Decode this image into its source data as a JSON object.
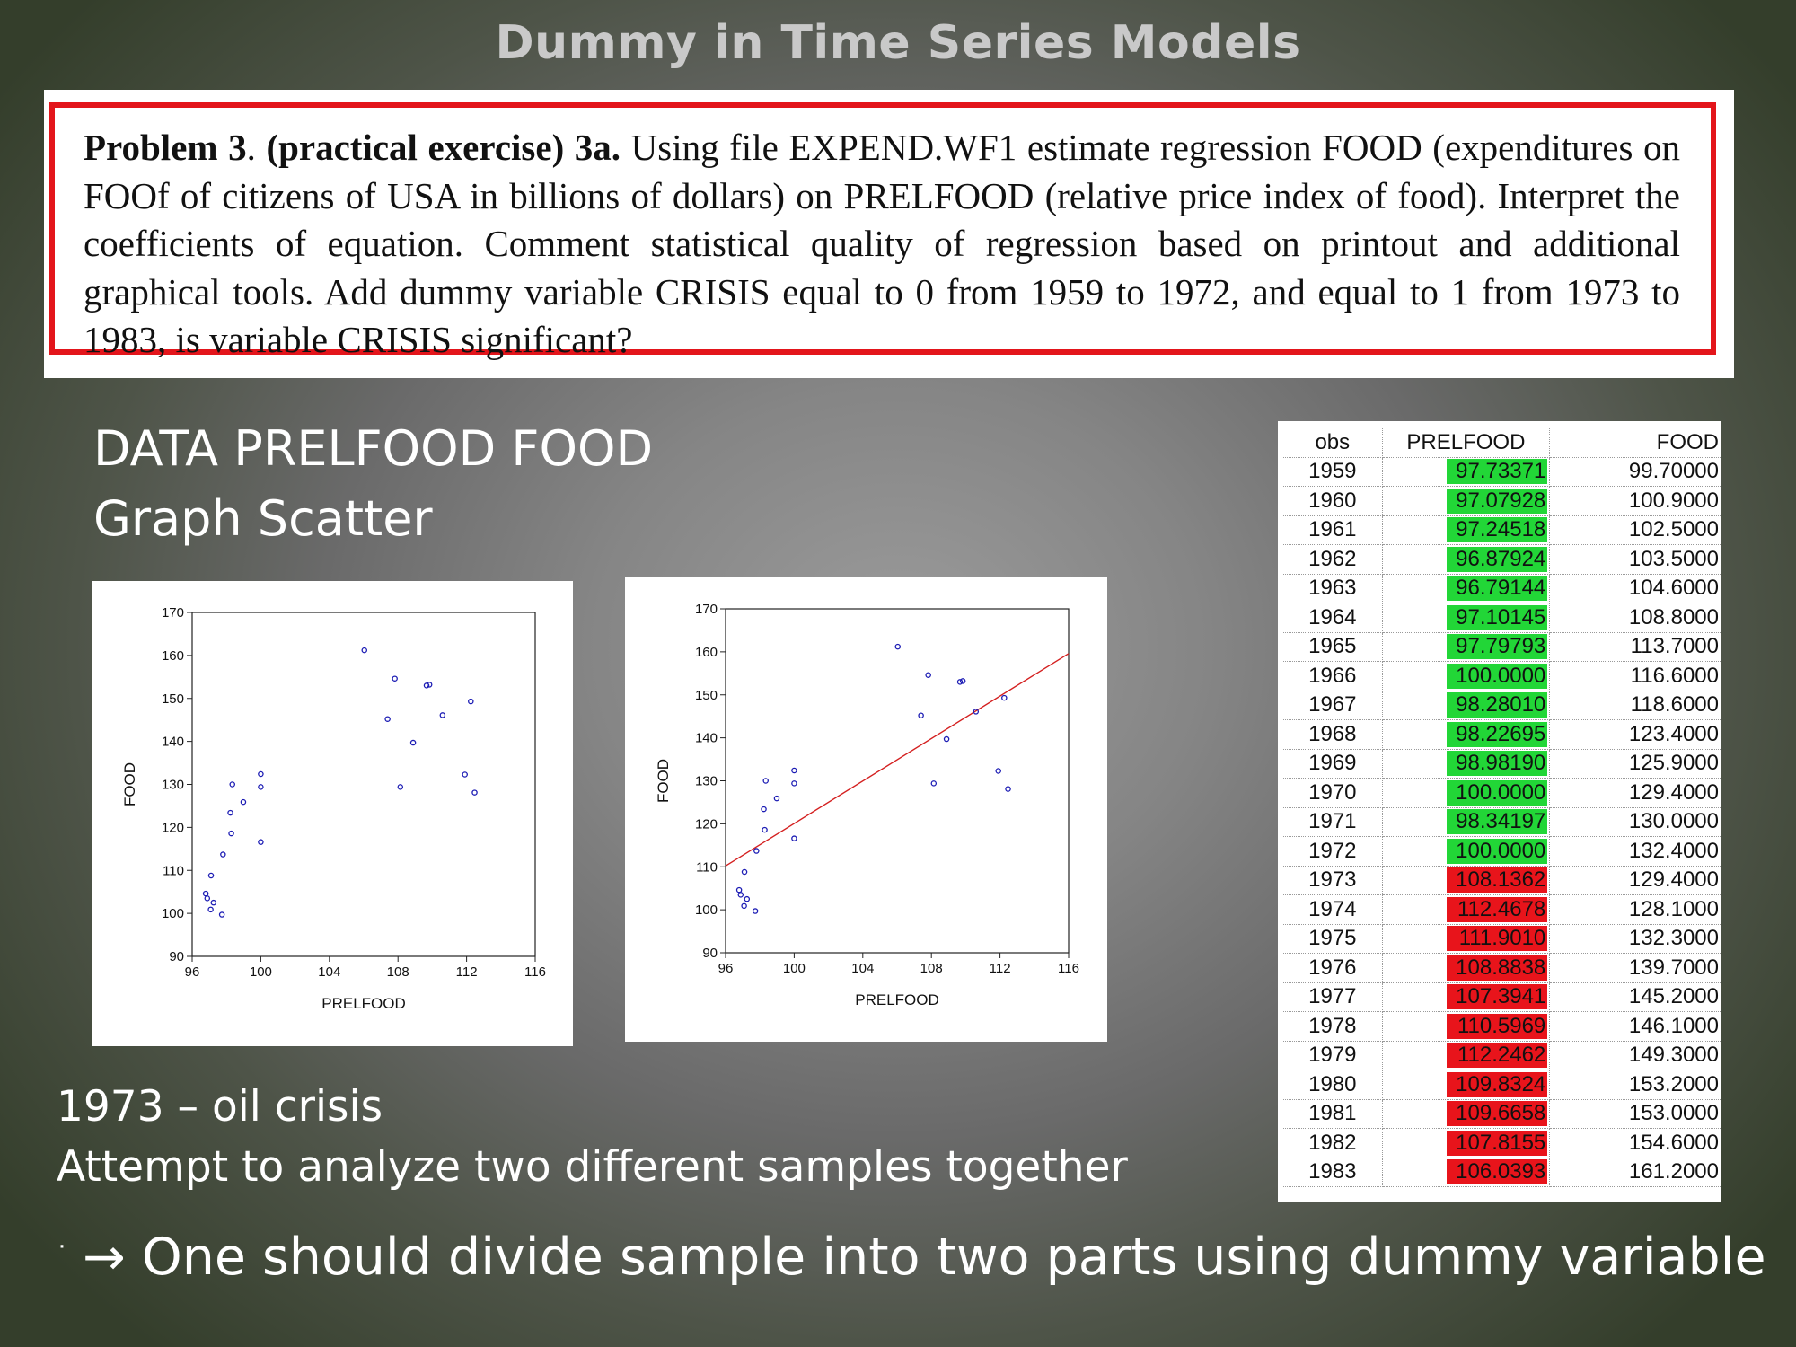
{
  "slide": {
    "title": "Dummy in Time Series Models"
  },
  "problem": {
    "bold_lead": "Problem 3",
    "dot": ".",
    "bold_mid": " (practical exercise) 3a.",
    "text": " Using file EXPEND.WF1 estimate regression FOOD (expenditures on FOOf of citizens of USA in billions of dollars) on PRELFOOD (relative price index of food). Interpret the coefficients of equation. Comment statistical quality of regression based on printout and additional graphical tools.  Add dummy variable CRISIS equal to 0 from 1959 to 1972, and equal to 1 from 1973 to 1983, is variable CRISIS significant?"
  },
  "headings": {
    "line1": "DATA PRELFOOD FOOD",
    "line2": "Graph Scatter"
  },
  "notes": {
    "line1": "1973 – oil crisis",
    "line2": "Attempt to analyze two different samples together",
    "bullet": "·",
    "conclusion": "→ One should divide sample into two parts using dummy variable"
  },
  "table": {
    "headers": [
      "obs",
      "PRELFOOD",
      "FOOD"
    ],
    "rows": [
      {
        "obs": "1959",
        "prelfood": "97.73371",
        "food": "99.70000",
        "crisis": 0
      },
      {
        "obs": "1960",
        "prelfood": "97.07928",
        "food": "100.9000",
        "crisis": 0
      },
      {
        "obs": "1961",
        "prelfood": "97.24518",
        "food": "102.5000",
        "crisis": 0
      },
      {
        "obs": "1962",
        "prelfood": "96.87924",
        "food": "103.5000",
        "crisis": 0
      },
      {
        "obs": "1963",
        "prelfood": "96.79144",
        "food": "104.6000",
        "crisis": 0
      },
      {
        "obs": "1964",
        "prelfood": "97.10145",
        "food": "108.8000",
        "crisis": 0
      },
      {
        "obs": "1965",
        "prelfood": "97.79793",
        "food": "113.7000",
        "crisis": 0
      },
      {
        "obs": "1966",
        "prelfood": "100.0000",
        "food": "116.6000",
        "crisis": 0
      },
      {
        "obs": "1967",
        "prelfood": "98.28010",
        "food": "118.6000",
        "crisis": 0
      },
      {
        "obs": "1968",
        "prelfood": "98.22695",
        "food": "123.4000",
        "crisis": 0
      },
      {
        "obs": "1969",
        "prelfood": "98.98190",
        "food": "125.9000",
        "crisis": 0
      },
      {
        "obs": "1970",
        "prelfood": "100.0000",
        "food": "129.4000",
        "crisis": 0
      },
      {
        "obs": "1971",
        "prelfood": "98.34197",
        "food": "130.0000",
        "crisis": 0
      },
      {
        "obs": "1972",
        "prelfood": "100.0000",
        "food": "132.4000",
        "crisis": 0
      },
      {
        "obs": "1973",
        "prelfood": "108.1362",
        "food": "129.4000",
        "crisis": 1
      },
      {
        "obs": "1974",
        "prelfood": "112.4678",
        "food": "128.1000",
        "crisis": 1
      },
      {
        "obs": "1975",
        "prelfood": "111.9010",
        "food": "132.3000",
        "crisis": 1
      },
      {
        "obs": "1976",
        "prelfood": "108.8838",
        "food": "139.7000",
        "crisis": 1
      },
      {
        "obs": "1977",
        "prelfood": "107.3941",
        "food": "145.2000",
        "crisis": 1
      },
      {
        "obs": "1978",
        "prelfood": "110.5969",
        "food": "146.1000",
        "crisis": 1
      },
      {
        "obs": "1979",
        "prelfood": "112.2462",
        "food": "149.3000",
        "crisis": 1
      },
      {
        "obs": "1980",
        "prelfood": "109.8324",
        "food": "153.2000",
        "crisis": 1
      },
      {
        "obs": "1981",
        "prelfood": "109.6658",
        "food": "153.0000",
        "crisis": 1
      },
      {
        "obs": "1982",
        "prelfood": "107.8155",
        "food": "154.6000",
        "crisis": 1
      },
      {
        "obs": "1983",
        "prelfood": "106.0393",
        "food": "161.2000",
        "crisis": 1
      }
    ],
    "colors": {
      "pre_crisis": "#22d637",
      "crisis": "#e8141b"
    }
  },
  "chart_data": [
    {
      "type": "scatter",
      "title": "",
      "xlabel": "PRELFOOD",
      "ylabel": "FOOD",
      "xlim": [
        96,
        116
      ],
      "ylim": [
        90,
        170
      ],
      "xticks": [
        96,
        100,
        104,
        108,
        112,
        116
      ],
      "yticks": [
        90,
        100,
        110,
        120,
        130,
        140,
        150,
        160,
        170
      ],
      "grid": false,
      "marker_color": "#1c1cb4",
      "x": [
        97.73371,
        97.07928,
        97.24518,
        96.87924,
        96.79144,
        97.10145,
        97.79793,
        100.0,
        98.2801,
        98.22695,
        98.9819,
        100.0,
        98.34197,
        100.0,
        108.1362,
        112.4678,
        111.901,
        108.8838,
        107.3941,
        110.5969,
        112.2462,
        109.8324,
        109.6658,
        107.8155,
        106.0393
      ],
      "y": [
        99.7,
        100.9,
        102.5,
        103.5,
        104.6,
        108.8,
        113.7,
        116.6,
        118.6,
        123.4,
        125.9,
        129.4,
        130.0,
        132.4,
        129.4,
        128.1,
        132.3,
        139.7,
        145.2,
        146.1,
        149.3,
        153.2,
        153.0,
        154.6,
        161.2
      ]
    },
    {
      "type": "scatter",
      "title": "",
      "xlabel": "PRELFOOD",
      "ylabel": "FOOD",
      "xlim": [
        96,
        116
      ],
      "ylim": [
        90,
        170
      ],
      "xticks": [
        96,
        100,
        104,
        108,
        112,
        116
      ],
      "yticks": [
        90,
        100,
        110,
        120,
        130,
        140,
        150,
        160,
        170
      ],
      "grid": false,
      "marker_color": "#1c1cb4",
      "fit_line": {
        "color": "#d42020",
        "x": [
          96,
          116
        ],
        "y": [
          110.2,
          159.6
        ]
      },
      "x": [
        97.73371,
        97.07928,
        97.24518,
        96.87924,
        96.79144,
        97.10145,
        97.79793,
        100.0,
        98.2801,
        98.22695,
        98.9819,
        100.0,
        98.34197,
        100.0,
        108.1362,
        112.4678,
        111.901,
        108.8838,
        107.3941,
        110.5969,
        112.2462,
        109.8324,
        109.6658,
        107.8155,
        106.0393
      ],
      "y": [
        99.7,
        100.9,
        102.5,
        103.5,
        104.6,
        108.8,
        113.7,
        116.6,
        118.6,
        123.4,
        125.9,
        129.4,
        130.0,
        132.4,
        129.4,
        128.1,
        132.3,
        139.7,
        145.2,
        146.1,
        149.3,
        153.2,
        153.0,
        154.6,
        161.2
      ]
    }
  ]
}
